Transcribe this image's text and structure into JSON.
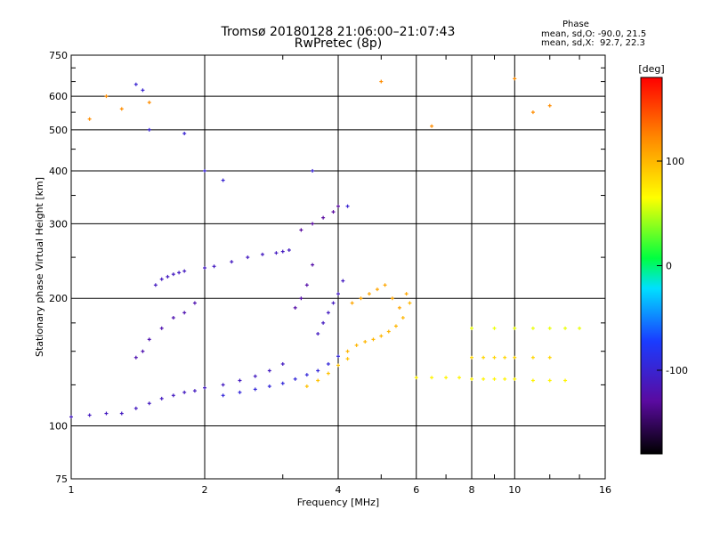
{
  "chart_data": {
    "type": "scatter",
    "title": "Tromsø 20180128 21:06:00–21:07:43",
    "subtitle": "RwPretec (8p)",
    "xlabel": "Frequency [MHz]",
    "ylabel": "Stationary phase Virtual Height [km]",
    "x_scale": "log",
    "y_scale": "log",
    "xlim": [
      1,
      16
    ],
    "ylim": [
      75,
      750
    ],
    "x_ticks": [
      1,
      2,
      4,
      6,
      8,
      10,
      16
    ],
    "y_ticks": [
      75,
      100,
      200,
      300,
      400,
      500,
      600,
      750
    ],
    "grid": true,
    "colorbar": {
      "label": "[deg]",
      "range": [
        -180,
        180
      ],
      "ticks": [
        100,
        0,
        -100
      ]
    },
    "phase_stats": {
      "heading": "Phase",
      "line_o": "mean, sd,O: -90.0, 21.5",
      "line_x": "mean, sd,X:  92.7, 22.3"
    },
    "traces": [
      {
        "x": [
          1.0,
          1.1,
          1.2,
          1.3,
          1.4,
          1.5,
          1.6,
          1.7,
          1.8,
          1.9,
          2.0,
          2.2,
          2.4,
          2.6,
          2.8,
          3.0
        ],
        "y": [
          105,
          106,
          107,
          107,
          110,
          113,
          116,
          118,
          120,
          121,
          123,
          125,
          128,
          131,
          135,
          140
        ],
        "phase": -110
      },
      {
        "x": [
          2.2,
          2.4,
          2.6,
          2.8,
          3.0,
          3.2,
          3.4,
          3.6,
          3.8,
          4.0
        ],
        "y": [
          118,
          120,
          122,
          124,
          126,
          129,
          132,
          135,
          140,
          146
        ],
        "phase": -95
      },
      {
        "x": [
          3.4,
          3.6,
          3.8,
          4.0,
          4.2
        ],
        "y": [
          124,
          128,
          133,
          139,
          144
        ],
        "phase": 95
      },
      {
        "x": [
          4.2,
          4.4,
          4.6,
          4.8,
          5.0,
          5.2,
          5.4,
          5.6,
          5.8
        ],
        "y": [
          150,
          155,
          158,
          160,
          163,
          167,
          172,
          180,
          195
        ],
        "phase": 100
      },
      {
        "x": [
          4.3,
          4.5,
          4.7,
          4.9,
          5.1,
          5.3,
          5.5,
          5.7
        ],
        "y": [
          195,
          200,
          205,
          210,
          215,
          200,
          190,
          205
        ],
        "phase": 108
      },
      {
        "x": [
          6.0,
          6.5,
          7.0,
          7.5,
          8.0,
          8.5,
          9.0,
          9.5,
          10.0,
          11.0,
          12.0,
          13.0
        ],
        "y": [
          130,
          130,
          130,
          130,
          129,
          129,
          129,
          129,
          129,
          128,
          128,
          128
        ],
        "phase": 70
      },
      {
        "x": [
          8.0,
          8.5,
          9.0,
          9.5,
          10.0,
          11.0,
          12.0
        ],
        "y": [
          145,
          145,
          145,
          145,
          145,
          145,
          145
        ],
        "phase": 85
      },
      {
        "x": [
          8.0,
          9.0,
          10.0,
          11.0,
          12.0,
          13.0,
          14.0
        ],
        "y": [
          170,
          170,
          170,
          170,
          170,
          170,
          170
        ],
        "phase": 60
      },
      {
        "x": [
          1.55,
          1.6,
          1.65,
          1.7,
          1.75,
          1.8,
          2.0,
          2.1,
          2.3,
          2.5,
          2.7,
          2.9,
          3.0,
          3.1
        ],
        "y": [
          215,
          222,
          225,
          228,
          230,
          232,
          236,
          238,
          244,
          250,
          254,
          256,
          258,
          260
        ],
        "phase": -110
      },
      {
        "x": [
          1.4,
          1.45,
          1.5,
          1.6,
          1.7,
          1.8,
          1.9
        ],
        "y": [
          145,
          150,
          160,
          170,
          180,
          185,
          195
        ],
        "phase": -120
      },
      {
        "x": [
          3.2,
          3.3,
          3.4,
          3.5
        ],
        "y": [
          190,
          200,
          215,
          240
        ],
        "phase": -125
      },
      {
        "x": [
          3.6,
          3.7,
          3.8,
          3.9,
          4.0,
          4.1
        ],
        "y": [
          165,
          175,
          185,
          195,
          205,
          220
        ],
        "phase": -110
      },
      {
        "x": [
          3.3,
          3.5,
          3.7,
          3.9,
          4.0
        ],
        "y": [
          290,
          300,
          310,
          320,
          330
        ],
        "phase": -130
      },
      {
        "x": [
          1.4,
          1.45,
          1.5,
          1.8,
          2.0,
          2.2,
          3.5,
          4.2
        ],
        "y": [
          640,
          620,
          500,
          490,
          400,
          380,
          400,
          330
        ],
        "phase": -100
      },
      {
        "x": [
          1.1,
          1.2,
          1.3,
          1.5,
          10.0,
          11.0,
          12.0,
          5.0,
          6.5
        ],
        "y": [
          530,
          600,
          560,
          580,
          660,
          550,
          570,
          650,
          510
        ],
        "phase": 120
      }
    ]
  }
}
